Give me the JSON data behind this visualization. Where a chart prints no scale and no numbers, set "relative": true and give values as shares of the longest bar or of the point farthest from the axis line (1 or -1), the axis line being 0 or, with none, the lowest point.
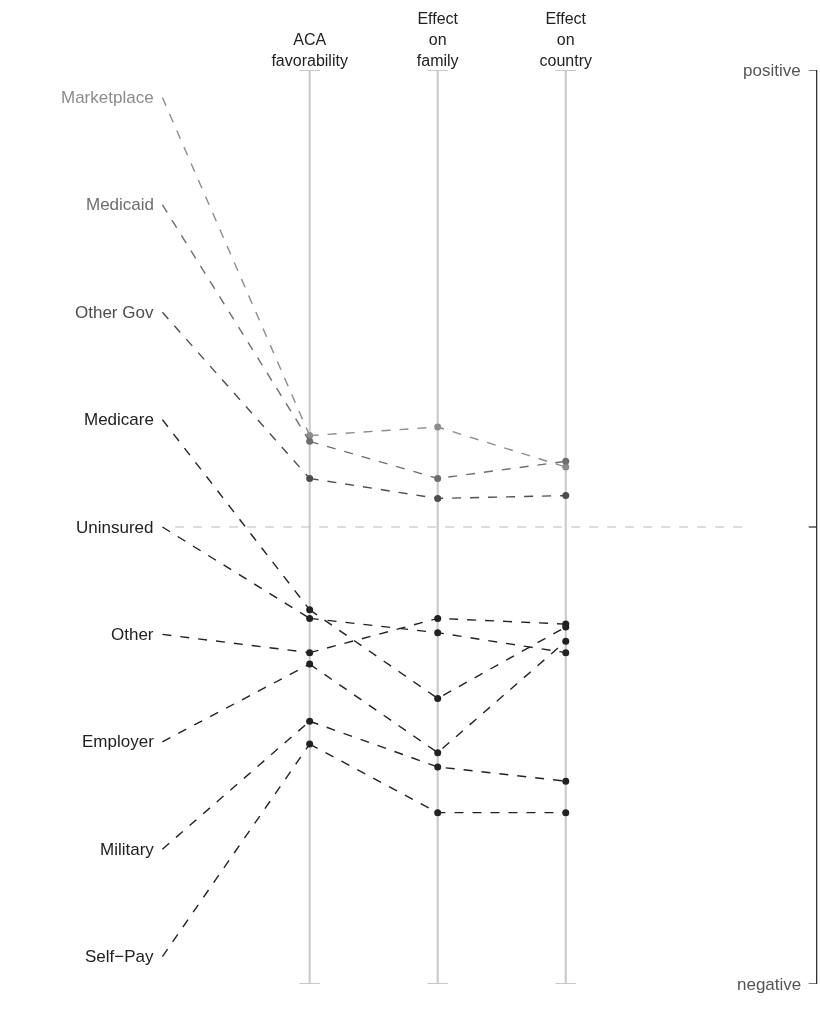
{
  "chart_data": {
    "type": "line",
    "categories": [
      "ACA favorability",
      "Effect on family",
      "Effect on country"
    ],
    "series": [
      {
        "name": "Marketplace",
        "color": "#8c8c8c",
        "values": [
          0.32,
          0.35,
          0.21
        ]
      },
      {
        "name": "Medicaid",
        "color": "#6e6e6e",
        "values": [
          0.3,
          0.17,
          0.23
        ]
      },
      {
        "name": "Other Gov",
        "color": "#4d4d4d",
        "values": [
          0.17,
          0.1,
          0.11
        ]
      },
      {
        "name": "Medicare",
        "color": "#222222",
        "values": [
          -0.29,
          -0.6,
          -0.35
        ]
      },
      {
        "name": "Uninsured",
        "color": "#222222",
        "values": [
          -0.32,
          -0.37,
          -0.44
        ]
      },
      {
        "name": "Other",
        "color": "#222222",
        "values": [
          -0.44,
          -0.32,
          -0.34
        ]
      },
      {
        "name": "Employer",
        "color": "#222222",
        "values": [
          -0.48,
          -0.79,
          -0.4
        ]
      },
      {
        "name": "Military",
        "color": "#222222",
        "values": [
          -0.68,
          -0.84,
          -0.89
        ]
      },
      {
        "name": "Self−Pay",
        "color": "#222222",
        "values": [
          -0.76,
          -1,
          -1
        ]
      }
    ],
    "relative": true,
    "annotations": [
      "positive",
      "negative"
    ],
    "ref_lines": [
      {
        "axis": "y",
        "value": 0,
        "color": "#bbbbbb",
        "line_style": "dashed"
      }
    ],
    "marker": "circle",
    "line_style": "dashed",
    "legend": false,
    "grid": "x"
  }
}
